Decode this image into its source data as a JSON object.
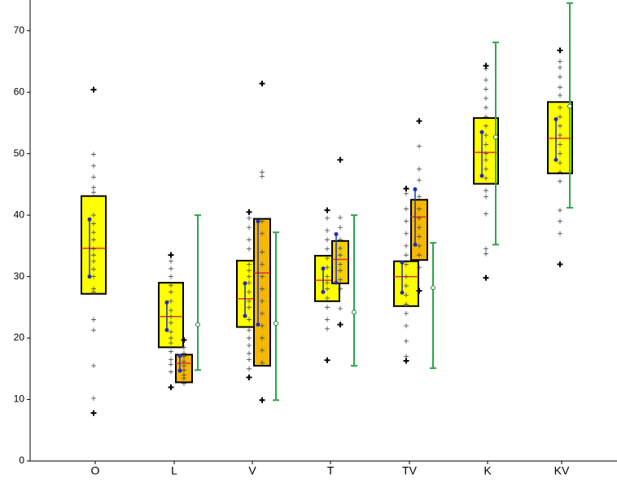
{
  "chart_data": {
    "type": "box",
    "categories": [
      "O",
      "L",
      "V",
      "T",
      "TV",
      "K",
      "KV"
    ],
    "ylim": [
      0,
      75
    ],
    "yticks": [
      0,
      10,
      20,
      30,
      40,
      50,
      60,
      70
    ],
    "median_color": "#e0303a",
    "ci_color": "#1f2fbf",
    "errorbar_color": "#2ca84a",
    "groups": [
      {
        "boxes": [
          {
            "q1": 27.2,
            "median": 34.6,
            "q3": 43.1,
            "ci": [
              30,
              39.3
            ],
            "color": "#ffff00",
            "points": [
              49.9,
              48,
              46.2,
              44.5,
              43.7,
              40,
              38.6,
              37.2,
              36,
              34.5,
              33.5,
              32.5,
              31.2,
              30,
              28,
              27.5,
              23,
              21.3,
              15.5,
              10.2
            ],
            "outliers": [
              60.4,
              7.8
            ]
          }
        ],
        "errorbar": null
      },
      {
        "boxes": [
          {
            "q1": 18.5,
            "median": 23.5,
            "q3": 29,
            "ci": [
              21.3,
              25.8
            ],
            "color": "#ffff00",
            "points": [
              32.5,
              31.3,
              30,
              28.6,
              27.5,
              26,
              24.5,
              23.5,
              22.5,
              21,
              20,
              19.2,
              17.8,
              16.5,
              15.7,
              14.5
            ],
            "outliers": [
              33.5,
              12
            ]
          },
          {
            "q1": 12.8,
            "median": 15.9,
            "q3": 17.3,
            "ci": [
              14.7,
              17.1
            ],
            "color": "#f5b800",
            "points": [
              18.5,
              17.5,
              17,
              16.2,
              15.5,
              14.8,
              14,
              13.5,
              12.9,
              12.6
            ],
            "outliers": [
              19.7
            ]
          }
        ],
        "errorbar": {
          "low": 14.8,
          "mean": 22.2,
          "high": 40
        }
      },
      {
        "boxes": [
          {
            "q1": 21.8,
            "median": 26.4,
            "q3": 32.6,
            "ci": [
              23.6,
              28.9
            ],
            "color": "#ffff00",
            "points": [
              39.5,
              38,
              36,
              34.5,
              32,
              31,
              30,
              29,
              27.5,
              26,
              25,
              23,
              21.3,
              20,
              18.8,
              17.5,
              16.5,
              15
            ],
            "outliers": [
              40.5,
              13.6
            ]
          },
          {
            "q1": 15.5,
            "median": 30.6,
            "q3": 39.4,
            "ci": [
              22.2,
              39
            ],
            "color": "#f5b800",
            "points": [
              47,
              46.3,
              39,
              37,
              34,
              32,
              30,
              28,
              26,
              24,
              22,
              20,
              18,
              16
            ],
            "outliers": [
              61.4,
              9.9
            ]
          }
        ],
        "errorbar": {
          "low": 9.9,
          "mean": 22.4,
          "high": 37.2
        }
      },
      {
        "boxes": [
          {
            "q1": 26,
            "median": 29.4,
            "q3": 33.4,
            "ci": [
              27.5,
              31.3
            ],
            "color": "#ffff00",
            "points": [
              39.5,
              37.5,
              36,
              34.5,
              33,
              31.5,
              30,
              29,
              28,
              26.5,
              25,
              23,
              21.5
            ],
            "outliers": [
              40.8,
              16.4
            ]
          },
          {
            "q1": 28.9,
            "median": 32.8,
            "q3": 35.8,
            "ci": [
              29,
              36.9
            ],
            "color": "#f5d000",
            "points": [
              39.6,
              38,
              36,
              34.6,
              33.5,
              32,
              31,
              29.5,
              28,
              24.8
            ],
            "outliers": [
              49,
              22.2
            ]
          }
        ],
        "errorbar": {
          "low": 15.5,
          "mean": 24.2,
          "high": 40
        }
      },
      {
        "boxes": [
          {
            "q1": 25.2,
            "median": 30,
            "q3": 32.5,
            "ci": [
              27.4,
              32.3
            ],
            "color": "#ffff00",
            "points": [
              43.5,
              41,
              39,
              37,
              35,
              33.5,
              32,
              30,
              28.5,
              27,
              25.5,
              24,
              22,
              19.5,
              17
            ],
            "outliers": [
              44.3,
              16.3
            ]
          },
          {
            "q1": 32.7,
            "median": 39.7,
            "q3": 42.5,
            "ci": [
              35.2,
              44.2
            ],
            "color": "#f5b800",
            "points": [
              51.2,
              47.5,
              45.7,
              43,
              41,
              39.5,
              38,
              36.5,
              35,
              33.5,
              31.5
            ],
            "outliers": [
              55.3,
              27.7
            ]
          }
        ],
        "errorbar": {
          "low": 15.1,
          "mean": 28.2,
          "high": 35.5
        }
      },
      {
        "boxes": [
          {
            "q1": 45.1,
            "median": 50.2,
            "q3": 55.8,
            "ci": [
              46.4,
              53.5
            ],
            "color": "#ffff00",
            "points": [
              63.8,
              62,
              60.5,
              59,
              57.5,
              56,
              54.5,
              53,
              51.5,
              50,
              49,
              47.5,
              46,
              44,
              43,
              40.2,
              34.5,
              33.7
            ],
            "outliers": [
              64.3,
              29.8
            ]
          }
        ],
        "errorbar": {
          "low": 35.2,
          "mean": 52.7,
          "high": 68.1
        }
      },
      {
        "boxes": [
          {
            "q1": 46.8,
            "median": 52.5,
            "q3": 58.4,
            "ci": [
              49,
              55.6
            ],
            "color": "#ffff00",
            "points": [
              65,
              64,
              62.5,
              60.8,
              59.5,
              57.5,
              56,
              54.5,
              53,
              51.5,
              50,
              48.5,
              47,
              45.5,
              40.8,
              39,
              37
            ],
            "outliers": [
              66.8,
              32
            ]
          }
        ],
        "errorbar": {
          "low": 41.2,
          "mean": 57.7,
          "high": 74.5
        }
      }
    ]
  }
}
